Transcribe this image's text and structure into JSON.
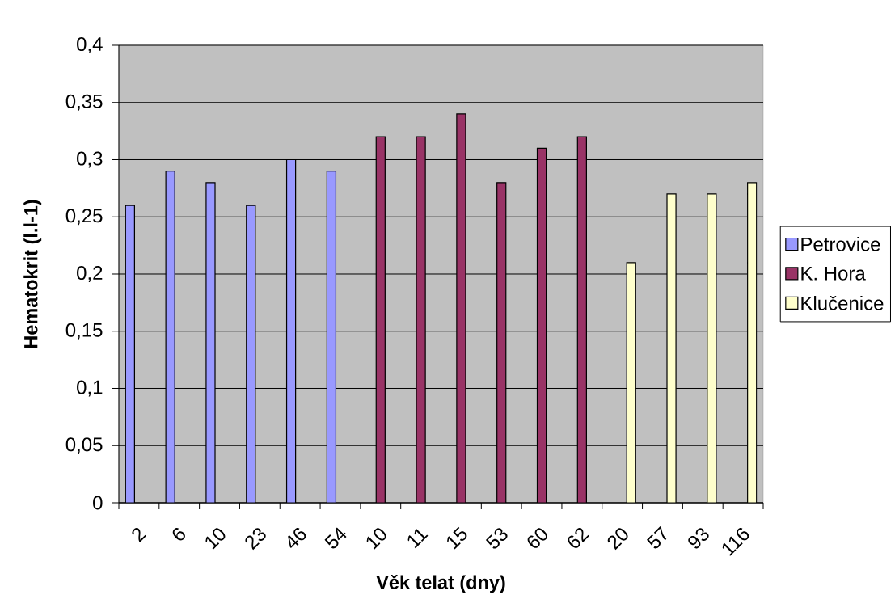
{
  "chart_data": {
    "type": "bar",
    "xlabel": "Věk telat (dny)",
    "ylabel": "Hematokrit (l.l-1)",
    "categories": [
      "2",
      "6",
      "10",
      "23",
      "46",
      "54",
      "10",
      "11",
      "15",
      "53",
      "60",
      "62",
      "20",
      "57",
      "93",
      "116"
    ],
    "series": [
      {
        "name": "Petrovice",
        "color": "#9999ff",
        "values": [
          0.26,
          0.29,
          0.28,
          0.26,
          0.3,
          0.29,
          null,
          null,
          null,
          null,
          null,
          null,
          null,
          null,
          null,
          null
        ]
      },
      {
        "name": "K. Hora",
        "color": "#993366",
        "values": [
          null,
          null,
          null,
          null,
          null,
          null,
          0.32,
          0.32,
          0.34,
          0.28,
          0.31,
          0.32,
          null,
          null,
          null,
          null
        ]
      },
      {
        "name": "Klučenice",
        "color": "#ffffcc",
        "values": [
          null,
          null,
          null,
          null,
          null,
          null,
          null,
          null,
          null,
          null,
          null,
          null,
          0.21,
          0.27,
          0.27,
          0.28
        ]
      }
    ],
    "ylim": [
      0,
      0.4
    ],
    "yticks": [
      0,
      {
        "value": 0.05,
        "label": "0,05"
      },
      {
        "value": 0.1,
        "label": "0,1"
      },
      {
        "value": 0.15,
        "label": "0,15"
      },
      {
        "value": 0.2,
        "label": "0,2"
      },
      {
        "value": 0.25,
        "label": "0,25"
      },
      {
        "value": 0.3,
        "label": "0,3"
      },
      {
        "value": 0.35,
        "label": "0,35"
      },
      {
        "value": 0.4,
        "label": "0,4"
      }
    ],
    "grid": "y",
    "legend": "right"
  }
}
